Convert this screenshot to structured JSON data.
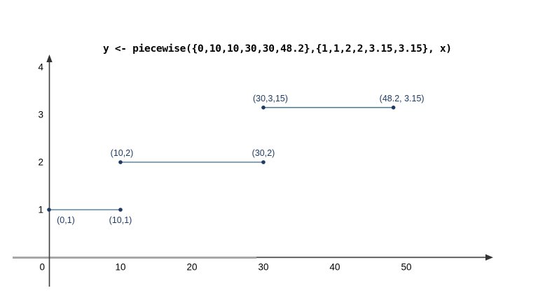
{
  "chart_data": {
    "type": "line",
    "title": "y <- piecewise({0,10,10,30,30,48.2},{1,1,2,2,3.15,3.15}, x)",
    "xlabel": "",
    "ylabel": "",
    "grid": false,
    "legend": false,
    "xlim": [
      0,
      62
    ],
    "ylim": [
      0,
      4.3
    ],
    "x_ticks": [
      0,
      10,
      20,
      30,
      40,
      50
    ],
    "y_ticks": [
      1,
      2,
      3,
      4
    ],
    "series": [
      {
        "name": "segment-1",
        "x": [
          0,
          10
        ],
        "y": [
          1,
          1
        ],
        "point_labels": [
          "(0,1)",
          "(10,1)"
        ],
        "label_side": "below",
        "label_dx": [
          24,
          0
        ]
      },
      {
        "name": "segment-2",
        "x": [
          10,
          30
        ],
        "y": [
          2,
          2
        ],
        "point_labels": [
          "(10,2)",
          "(30,2)"
        ],
        "label_side": "above",
        "label_dx": [
          2,
          0
        ]
      },
      {
        "name": "segment-3",
        "x": [
          30,
          48.2
        ],
        "y": [
          3.15,
          3.15
        ],
        "point_labels": [
          "(30,3,15)",
          "(48.2, 3.15)"
        ],
        "label_side": "above",
        "label_dx": [
          10,
          12
        ]
      }
    ],
    "colors": {
      "segment_line": "#3a6e8f",
      "point": "#1f3864",
      "point_label": "#1f3c64",
      "y_axis": "#3d3d3d",
      "x_axis_gray": "#a8a8a8",
      "x_axis_dark": "#595959",
      "tick_text": "#000000"
    }
  }
}
